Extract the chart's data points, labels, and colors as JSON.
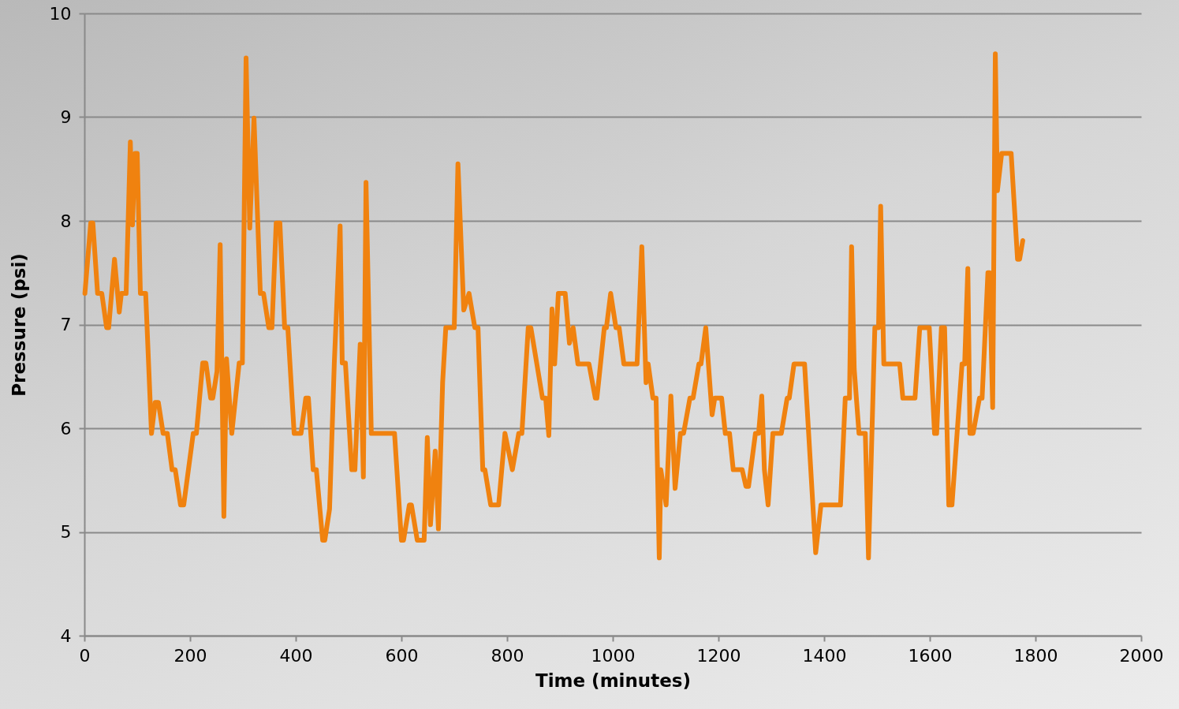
{
  "chart_data": {
    "type": "line",
    "xlabel": "Time (minutes)",
    "ylabel": "Pressure (psi)",
    "xlim": [
      0,
      2000
    ],
    "xticks": [
      0,
      200,
      400,
      600,
      800,
      1000,
      1200,
      1400,
      1600,
      1800,
      2000
    ],
    "ylim": [
      4,
      10
    ],
    "yticks": [
      4,
      5,
      6,
      7,
      8,
      9,
      10
    ],
    "grid": "y",
    "marker": "none",
    "line_style": "solid",
    "x": [
      1,
      12,
      16,
      25,
      33,
      42,
      46,
      57,
      66,
      70,
      79,
      87,
      91,
      96,
      100,
      106,
      116,
      127,
      134,
      140,
      149,
      157,
      166,
      172,
      182,
      188,
      206,
      212,
      224,
      230,
      239,
      243,
      251,
      257,
      264,
      269,
      279,
      293,
      299,
      306,
      313,
      321,
      333,
      339,
      349,
      355,
      363,
      370,
      379,
      385,
      397,
      410,
      419,
      424,
      433,
      439,
      451,
      455,
      464,
      473,
      484,
      488,
      494,
      506,
      512,
      522,
      528,
      533,
      543,
      587,
      600,
      604,
      615,
      619,
      630,
      643,
      649,
      655,
      664,
      670,
      678,
      684,
      700,
      707,
      718,
      728,
      739,
      745,
      754,
      758,
      769,
      784,
      796,
      810,
      822,
      828,
      840,
      845,
      867,
      873,
      879,
      885,
      890,
      897,
      910,
      918,
      925,
      934,
      955,
      967,
      970,
      984,
      988,
      996,
      1006,
      1012,
      1021,
      1046,
      1055,
      1063,
      1067,
      1076,
      1082,
      1088,
      1091,
      1101,
      1110,
      1118,
      1128,
      1134,
      1146,
      1152,
      1163,
      1167,
      1176,
      1188,
      1193,
      1206,
      1213,
      1221,
      1228,
      1245,
      1252,
      1257,
      1270,
      1276,
      1282,
      1287,
      1294,
      1303,
      1319,
      1330,
      1334,
      1343,
      1363,
      1384,
      1394,
      1400,
      1431,
      1440,
      1448,
      1452,
      1457,
      1466,
      1478,
      1484,
      1496,
      1503,
      1507,
      1513,
      1543,
      1549,
      1572,
      1581,
      1599,
      1609,
      1613,
      1622,
      1628,
      1636,
      1642,
      1661,
      1666,
      1672,
      1676,
      1682,
      1694,
      1699,
      1710,
      1713,
      1719,
      1724,
      1728,
      1736,
      1754,
      1766,
      1770,
      1776
    ],
    "series": [
      {
        "color": "#f0820f",
        "values": [
          7.3,
          7.98,
          7.98,
          7.3,
          7.3,
          6.97,
          6.97,
          7.63,
          7.12,
          7.3,
          7.3,
          8.76,
          7.96,
          8.65,
          8.65,
          7.3,
          7.3,
          5.95,
          6.25,
          6.25,
          5.95,
          5.95,
          5.6,
          5.6,
          5.26,
          5.26,
          5.95,
          5.95,
          6.63,
          6.63,
          6.29,
          6.29,
          6.55,
          7.77,
          5.15,
          6.67,
          5.95,
          6.63,
          6.63,
          9.57,
          7.93,
          8.99,
          7.3,
          7.3,
          6.97,
          6.97,
          7.98,
          7.98,
          6.97,
          6.97,
          5.95,
          5.95,
          6.29,
          6.29,
          5.6,
          5.6,
          4.92,
          4.92,
          5.22,
          6.63,
          7.95,
          6.63,
          6.63,
          5.6,
          5.6,
          6.81,
          5.53,
          8.37,
          5.95,
          5.95,
          4.92,
          4.92,
          5.26,
          5.26,
          4.92,
          4.92,
          5.91,
          5.07,
          5.78,
          5.03,
          6.44,
          6.97,
          6.97,
          8.55,
          7.14,
          7.3,
          6.97,
          6.97,
          5.6,
          5.6,
          5.26,
          5.26,
          5.95,
          5.6,
          5.95,
          5.95,
          6.97,
          6.97,
          6.29,
          6.29,
          5.93,
          7.15,
          6.62,
          7.3,
          7.3,
          6.82,
          6.97,
          6.62,
          6.62,
          6.29,
          6.29,
          6.97,
          6.97,
          7.3,
          6.97,
          6.97,
          6.62,
          6.62,
          7.75,
          6.44,
          6.62,
          6.29,
          6.29,
          4.75,
          5.6,
          5.26,
          6.31,
          5.42,
          5.95,
          5.95,
          6.29,
          6.29,
          6.62,
          6.62,
          6.97,
          6.13,
          6.29,
          6.29,
          5.95,
          5.95,
          5.6,
          5.6,
          5.44,
          5.44,
          5.95,
          5.95,
          6.31,
          5.6,
          5.26,
          5.95,
          5.95,
          6.29,
          6.29,
          6.62,
          6.62,
          4.8,
          5.26,
          5.26,
          5.26,
          6.29,
          6.29,
          7.75,
          6.57,
          5.95,
          5.95,
          4.75,
          6.97,
          6.97,
          8.14,
          6.62,
          6.62,
          6.29,
          6.29,
          6.97,
          6.97,
          5.95,
          5.95,
          6.97,
          6.97,
          5.26,
          5.26,
          6.62,
          6.62,
          7.54,
          5.95,
          5.95,
          6.29,
          6.29,
          7.5,
          7.5,
          6.2,
          9.61,
          8.29,
          8.65,
          8.65,
          7.63,
          7.63,
          7.81
        ]
      }
    ]
  }
}
